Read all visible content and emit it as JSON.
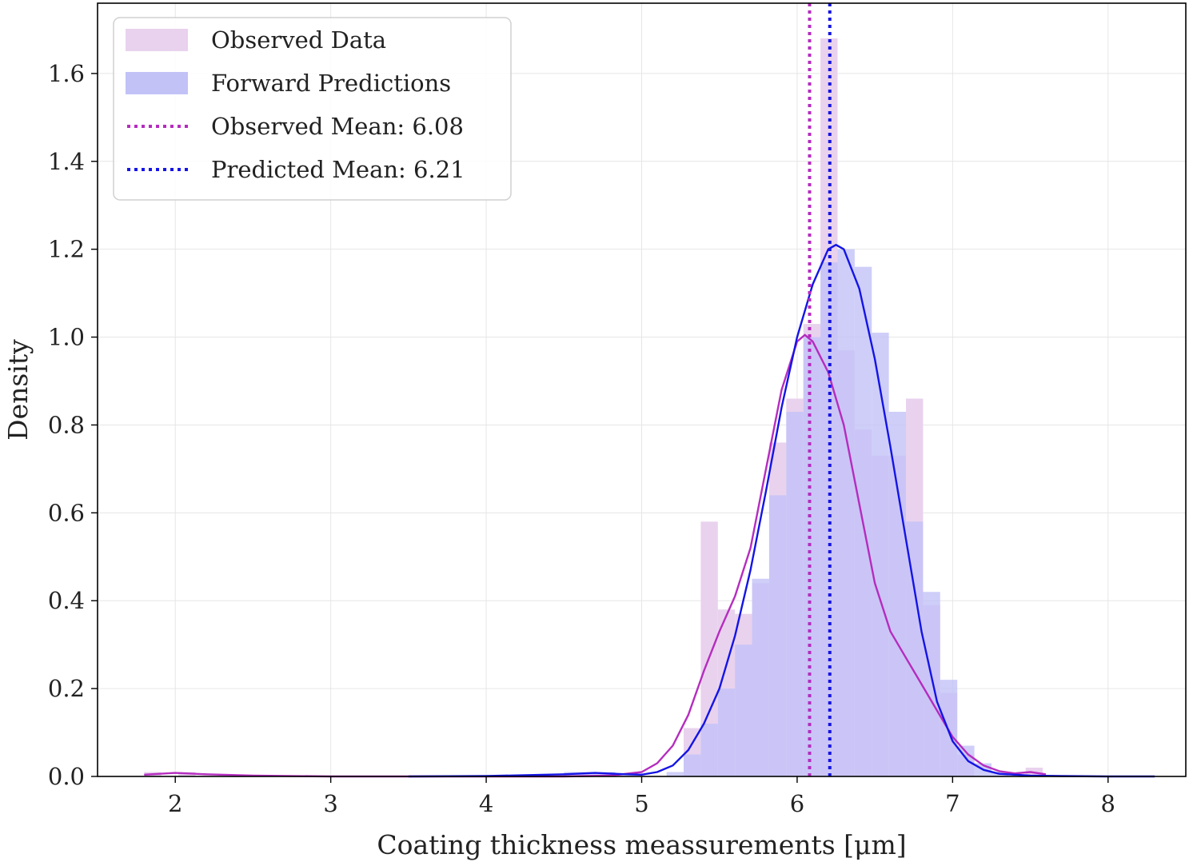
{
  "chart_data": {
    "type": "histogram",
    "xlabel": "Coating thickness meassurements [μm]",
    "ylabel": "Density",
    "xlim": [
      1.5,
      8.5
    ],
    "ylim": [
      0.0,
      1.76
    ],
    "xticks": [
      "2",
      "3",
      "4",
      "5",
      "6",
      "7",
      "8"
    ],
    "xtick_values": [
      2,
      3,
      4,
      5,
      6,
      7,
      8
    ],
    "yticks": [
      "0.0",
      "0.2",
      "0.4",
      "0.6",
      "0.8",
      "1.0",
      "1.2",
      "1.4",
      "1.6"
    ],
    "ytick_values": [
      0.0,
      0.2,
      0.4,
      0.6,
      0.8,
      1.0,
      1.2,
      1.4,
      1.6
    ],
    "grid": true,
    "legend_position": "top-left",
    "legend": [
      {
        "label": "Observed Data",
        "kind": "patch",
        "color": "#e9d2ee"
      },
      {
        "label": "Forward Predictions",
        "kind": "patch",
        "color": "#c2c2f7"
      },
      {
        "label": "Observed Mean: 6.08",
        "kind": "dotted-line",
        "color": "#b52cbf"
      },
      {
        "label": "Predicted Mean: 6.21",
        "kind": "dotted-line",
        "color": "#1414e6"
      }
    ],
    "observed_hist": {
      "name": "Observed Data",
      "color": "#e9d2ee",
      "bin_width": 0.11,
      "bin_starts": [
        1.8,
        1.91,
        2.02,
        5.27,
        5.38,
        5.49,
        5.6,
        5.71,
        5.82,
        5.93,
        6.04,
        6.15,
        6.26,
        6.37,
        6.48,
        6.59,
        6.7,
        6.81,
        6.92,
        7.03,
        7.47
      ],
      "values": [
        0.01,
        0.0,
        0.01,
        0.11,
        0.58,
        0.38,
        0.37,
        0.44,
        0.76,
        0.86,
        1.03,
        1.68,
        0.97,
        0.79,
        0.73,
        0.73,
        0.86,
        0.39,
        0.19,
        0.05,
        0.02
      ]
    },
    "predicted_hist": {
      "name": "Forward Predictions",
      "color": "#c2c2f7",
      "bin_width": 0.11,
      "bin_starts": [
        4.5,
        4.61,
        4.72,
        5.16,
        5.27,
        5.38,
        5.49,
        5.6,
        5.71,
        5.82,
        5.93,
        6.04,
        6.15,
        6.26,
        6.37,
        6.48,
        6.59,
        6.7,
        6.81,
        6.92,
        7.03,
        7.14,
        7.25
      ],
      "values": [
        0.01,
        0.01,
        0.01,
        0.01,
        0.05,
        0.12,
        0.2,
        0.3,
        0.45,
        0.64,
        0.83,
        1.0,
        1.17,
        1.2,
        1.16,
        1.01,
        0.83,
        0.58,
        0.42,
        0.22,
        0.07,
        0.03,
        0.01
      ]
    },
    "observed_kde": {
      "name": "Observed Data",
      "color": "#b52cbf",
      "x": [
        1.8,
        2.0,
        2.2,
        2.5,
        3.0,
        3.5,
        4.0,
        4.5,
        4.8,
        5.0,
        5.1,
        5.2,
        5.3,
        5.4,
        5.5,
        5.6,
        5.7,
        5.8,
        5.9,
        6.0,
        6.05,
        6.1,
        6.2,
        6.3,
        6.4,
        6.5,
        6.6,
        6.7,
        6.8,
        6.9,
        7.0,
        7.1,
        7.2,
        7.3,
        7.4,
        7.5,
        7.6
      ],
      "y": [
        0.004,
        0.008,
        0.005,
        0.002,
        0.0,
        0.0,
        0.0,
        0.0,
        0.002,
        0.01,
        0.03,
        0.07,
        0.14,
        0.24,
        0.33,
        0.41,
        0.52,
        0.7,
        0.88,
        0.99,
        1.005,
        0.99,
        0.92,
        0.8,
        0.62,
        0.44,
        0.33,
        0.27,
        0.21,
        0.15,
        0.09,
        0.05,
        0.025,
        0.012,
        0.007,
        0.01,
        0.005
      ]
    },
    "predicted_kde": {
      "name": "Forward Predictions",
      "color": "#1414e6",
      "x": [
        3.5,
        4.0,
        4.5,
        4.7,
        4.9,
        5.0,
        5.1,
        5.2,
        5.3,
        5.4,
        5.5,
        5.6,
        5.7,
        5.8,
        5.9,
        6.0,
        6.1,
        6.2,
        6.25,
        6.3,
        6.4,
        6.5,
        6.6,
        6.7,
        6.8,
        6.9,
        7.0,
        7.1,
        7.2,
        7.3,
        7.5,
        7.7,
        8.0,
        8.3
      ],
      "y": [
        0.0,
        0.001,
        0.005,
        0.008,
        0.005,
        0.004,
        0.01,
        0.025,
        0.06,
        0.12,
        0.2,
        0.32,
        0.47,
        0.65,
        0.84,
        1.0,
        1.12,
        1.2,
        1.21,
        1.2,
        1.11,
        0.95,
        0.75,
        0.54,
        0.33,
        0.17,
        0.08,
        0.035,
        0.015,
        0.006,
        0.002,
        0.001,
        0.0,
        0.0
      ]
    },
    "mean_lines": [
      {
        "name": "Observed Mean",
        "x": 6.08,
        "color": "#b52cbf"
      },
      {
        "name": "Predicted Mean",
        "x": 6.21,
        "color": "#1414e6"
      }
    ]
  }
}
